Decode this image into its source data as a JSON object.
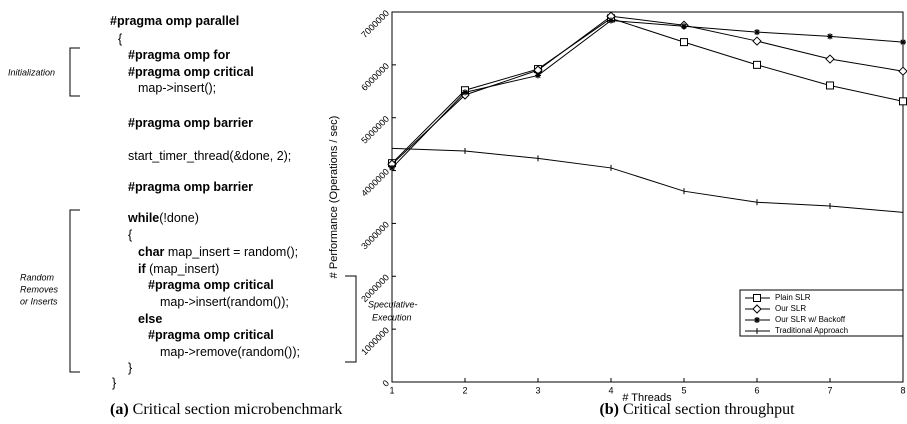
{
  "code": {
    "lines": [
      [
        {
          "text": "#pragma omp parallel",
          "bold": true
        }
      ],
      [
        {
          "text": "{",
          "bold": false
        }
      ],
      [
        {
          "text": "#pragma omp for",
          "bold": true
        }
      ],
      [
        {
          "text": "#pragma omp critical",
          "bold": true
        }
      ],
      [
        {
          "text": "map->insert();",
          "bold": false
        }
      ],
      [
        {
          "text": "#pragma omp barrier",
          "bold": true
        }
      ],
      [
        {
          "text": "start_timer_thread(&done, 2);",
          "bold": false
        }
      ],
      [
        {
          "text": "#pragma omp barrier",
          "bold": true
        }
      ],
      [
        {
          "text": "while",
          "bold": true
        },
        {
          "text": "(!done)",
          "bold": false
        }
      ],
      [
        {
          "text": "{",
          "bold": false
        }
      ],
      [
        {
          "text": "char",
          "bold": true
        },
        {
          "text": " map_insert = random();",
          "bold": false
        }
      ],
      [
        {
          "text": "if",
          "bold": true
        },
        {
          "text": " (map_insert)",
          "bold": false
        }
      ],
      [
        {
          "text": "#pragma omp critical",
          "bold": true
        }
      ],
      [
        {
          "text": "map->insert(random());",
          "bold": false
        }
      ],
      [
        {
          "text": "else",
          "bold": true
        }
      ],
      [
        {
          "text": "#pragma omp critical",
          "bold": true
        }
      ],
      [
        {
          "text": "map->remove(random());",
          "bold": false
        }
      ],
      [
        {
          "text": "}",
          "bold": false
        }
      ],
      [
        {
          "text": "}",
          "bold": false
        }
      ]
    ],
    "annotations": {
      "initialization": "Initialization",
      "random": [
        "Random",
        "Removes",
        "or Inserts"
      ],
      "speculative": [
        "Speculative-",
        "Execution"
      ]
    },
    "caption": {
      "label": "(a)",
      "text": "Critical section microbenchmark"
    }
  },
  "chart_data": {
    "type": "line",
    "caption": {
      "label": "(b)",
      "text": "Critical section throughput"
    },
    "xlabel": "# Threads",
    "ylabel": "# Performance (Operations / sec)",
    "x": [
      1,
      2,
      3,
      4,
      5,
      6,
      7,
      8
    ],
    "xlim": [
      1,
      8
    ],
    "xticks": [
      1,
      2,
      3,
      4,
      5,
      6,
      7,
      8
    ],
    "ylim": [
      0,
      7000000
    ],
    "yticks": [
      0,
      1000000,
      2000000,
      3000000,
      4000000,
      5000000,
      6000000,
      7000000
    ],
    "legend": "lower right",
    "series": [
      {
        "name": "Plain SLR",
        "color": "#000000",
        "marker": "square",
        "values": [
          4140000,
          5520000,
          5920000,
          6880000,
          6430000,
          6000000,
          5610000,
          5310000
        ]
      },
      {
        "name": "Our SLR",
        "color": "#000000",
        "marker": "diamond",
        "values": [
          4120000,
          5430000,
          5900000,
          6920000,
          6750000,
          6450000,
          6110000,
          5880000
        ]
      },
      {
        "name": "Our SLR w/ Backoff",
        "color": "#000000",
        "marker": "star",
        "values": [
          4050000,
          5480000,
          5800000,
          6840000,
          6730000,
          6620000,
          6540000,
          6430000
        ]
      },
      {
        "name": "Traditional Approach",
        "color": "#000000",
        "marker": "dash",
        "values": [
          4420000,
          4370000,
          4230000,
          4050000,
          3610000,
          3400000,
          3330000,
          3210000
        ]
      }
    ]
  }
}
